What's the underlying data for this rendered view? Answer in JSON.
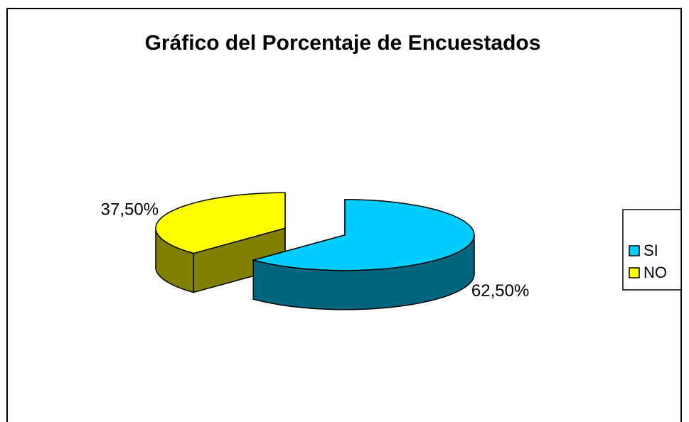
{
  "chart_data": {
    "type": "pie",
    "title": "Gráfico del Porcentaje de Encuestados",
    "categories": [
      "SI",
      "NO"
    ],
    "values": [
      62.5,
      37.5
    ],
    "value_labels": [
      "62,50%",
      "37,50%"
    ],
    "colors": [
      "#00ccff",
      "#ffff00"
    ],
    "legend": "right",
    "three_d": true,
    "exploded": true
  }
}
